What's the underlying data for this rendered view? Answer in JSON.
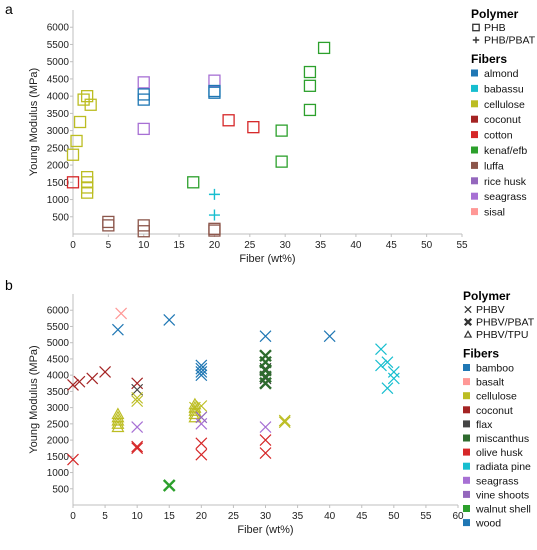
{
  "chart_data": [
    {
      "panel_label": "a",
      "type": "scatter",
      "xlabel": "Fiber (wt%)",
      "ylabel": "Young Modulus (MPa)",
      "xlim": [
        0,
        55
      ],
      "ylim": [
        0,
        6500
      ],
      "x_ticks": [
        0,
        5,
        10,
        15,
        20,
        25,
        30,
        35,
        40,
        45,
        50,
        55
      ],
      "y_ticks": [
        500,
        1000,
        1500,
        2000,
        2500,
        3000,
        3500,
        4000,
        4500,
        5000,
        5500,
        6000
      ],
      "legend_polymer": {
        "title": "Polymer",
        "items": [
          {
            "label": "PHB",
            "marker": "square"
          },
          {
            "label": "PHB/PBAT",
            "marker": "plus"
          }
        ]
      },
      "legend_fibers": {
        "title": "Fibers",
        "items": [
          {
            "label": "almond",
            "color": "#1f77b4"
          },
          {
            "label": "babassu",
            "color": "#17becf"
          },
          {
            "label": "cellulose",
            "color": "#bcbd22"
          },
          {
            "label": "coconut",
            "color": "#a42323"
          },
          {
            "label": "cotton",
            "color": "#d62728"
          },
          {
            "label": "kenaf/efb",
            "color": "#2ca02c"
          },
          {
            "label": "luffa",
            "color": "#8c564b"
          },
          {
            "label": "rice husk",
            "color": "#9467bd"
          },
          {
            "label": "seagrass",
            "color": "#a770d4"
          },
          {
            "label": "sisal",
            "color": "#ff9896"
          }
        ]
      },
      "series": [
        {
          "fiber": "cellulose",
          "marker": "square",
          "points": [
            [
              0,
              2300
            ],
            [
              0.5,
              2700
            ],
            [
              1,
              3250
            ],
            [
              1.5,
              3900
            ],
            [
              2,
              4000
            ],
            [
              2.5,
              3750
            ],
            [
              2,
              1650
            ],
            [
              2,
              1500
            ],
            [
              2,
              1350
            ],
            [
              2,
              1200
            ]
          ]
        },
        {
          "fiber": "cotton",
          "marker": "square",
          "points": [
            [
              0,
              1500
            ],
            [
              22,
              3300
            ],
            [
              25.5,
              3100
            ]
          ]
        },
        {
          "fiber": "luffa",
          "marker": "square",
          "points": [
            [
              5,
              350
            ],
            [
              5,
              250
            ],
            [
              10,
              250
            ],
            [
              10,
              80
            ],
            [
              20,
              150
            ],
            [
              20,
              100
            ]
          ]
        },
        {
          "fiber": "seagrass",
          "marker": "square",
          "points": [
            [
              10,
              4400
            ],
            [
              10,
              3050
            ],
            [
              20,
              4450
            ]
          ]
        },
        {
          "fiber": "almond",
          "marker": "square",
          "points": [
            [
              10,
              4050
            ],
            [
              10,
              3900
            ],
            [
              20,
              4150
            ],
            [
              20,
              4100
            ]
          ]
        },
        {
          "fiber": "kenaf/efb",
          "marker": "square",
          "points": [
            [
              17,
              1500
            ],
            [
              29.5,
              3000
            ],
            [
              29.5,
              2100
            ],
            [
              33.5,
              4700
            ],
            [
              33.5,
              4300
            ],
            [
              33.5,
              3600
            ],
            [
              35.5,
              5400
            ]
          ]
        },
        {
          "fiber": "babassu",
          "marker": "plus",
          "points": [
            [
              20,
              1150
            ],
            [
              20,
              550
            ]
          ]
        }
      ]
    },
    {
      "panel_label": "b",
      "type": "scatter",
      "xlabel": "Fiber (wt%)",
      "ylabel": "Young Modulus (MPa)",
      "xlim": [
        0,
        60
      ],
      "ylim": [
        0,
        6500
      ],
      "x_ticks": [
        0,
        5,
        10,
        15,
        20,
        25,
        30,
        35,
        40,
        45,
        50,
        55,
        60
      ],
      "y_ticks": [
        500,
        1000,
        1500,
        2000,
        2500,
        3000,
        3500,
        4000,
        4500,
        5000,
        5500,
        6000
      ],
      "legend_polymer": {
        "title": "Polymer",
        "items": [
          {
            "label": "PHBV",
            "marker": "x"
          },
          {
            "label": "PHBV/PBAT",
            "marker": "x-filled"
          },
          {
            "label": "PHBV/TPU",
            "marker": "triangle"
          }
        ]
      },
      "legend_fibers": {
        "title": "Fibers",
        "items": [
          {
            "label": "bamboo",
            "color": "#1f77b4"
          },
          {
            "label": "basalt",
            "color": "#ff9896"
          },
          {
            "label": "cellulose",
            "color": "#bcbd22"
          },
          {
            "label": "coconut",
            "color": "#a42323"
          },
          {
            "label": "flax",
            "color": "#444444"
          },
          {
            "label": "miscanthus",
            "color": "#2e6b2e"
          },
          {
            "label": "olive husk",
            "color": "#d62728"
          },
          {
            "label": "radiata pine",
            "color": "#17becf"
          },
          {
            "label": "seagrass",
            "color": "#a770d4"
          },
          {
            "label": "vine shoots",
            "color": "#9467bd"
          },
          {
            "label": "walnut shell",
            "color": "#2ca02c"
          },
          {
            "label": "wood",
            "color": "#1f77b4"
          }
        ]
      },
      "series": [
        {
          "fiber": "coconut",
          "marker": "x",
          "points": [
            [
              0,
              3700
            ],
            [
              1,
              3800
            ],
            [
              3,
              3900
            ],
            [
              5,
              4100
            ],
            [
              10,
              3750
            ]
          ]
        },
        {
          "fiber": "olive husk",
          "marker": "x",
          "points": [
            [
              0,
              1400
            ],
            [
              10,
              1800
            ],
            [
              10,
              1750
            ],
            [
              20,
              1900
            ],
            [
              20,
              1550
            ],
            [
              30,
              2000
            ],
            [
              30,
              1600
            ]
          ]
        },
        {
          "fiber": "basalt",
          "marker": "x",
          "points": [
            [
              7.5,
              5900
            ]
          ]
        },
        {
          "fiber": "bamboo",
          "marker": "x",
          "points": [
            [
              7,
              5400
            ],
            [
              15,
              5700
            ],
            [
              20,
              4300
            ],
            [
              20,
              4200
            ],
            [
              20,
              4100
            ],
            [
              20,
              4000
            ],
            [
              30,
              5200
            ],
            [
              40,
              5200
            ]
          ]
        },
        {
          "fiber": "flax",
          "marker": "x",
          "points": [
            [
              10,
              3550
            ],
            [
              30,
              4200
            ],
            [
              30,
              3900
            ]
          ]
        },
        {
          "fiber": "miscanthus",
          "marker": "x-filled",
          "points": [
            [
              30,
              4600
            ],
            [
              30,
              4400
            ],
            [
              30,
              4150
            ],
            [
              30,
              3950
            ],
            [
              30,
              3750
            ]
          ]
        },
        {
          "fiber": "cellulose",
          "marker": "x",
          "points": [
            [
              10,
              3300
            ],
            [
              10,
              3200
            ],
            [
              19,
              3000
            ],
            [
              20,
              3050
            ],
            [
              33,
              2600
            ],
            [
              33,
              2550
            ]
          ]
        },
        {
          "fiber": "cellulose",
          "marker": "triangle",
          "points": [
            [
              7,
              2800
            ],
            [
              7,
              2700
            ],
            [
              7,
              2600
            ],
            [
              7,
              2500
            ],
            [
              7,
              2400
            ],
            [
              19,
              3100
            ],
            [
              19,
              3000
            ],
            [
              19,
              2900
            ],
            [
              19,
              2800
            ],
            [
              19,
              2700
            ]
          ]
        },
        {
          "fiber": "seagrass",
          "marker": "x",
          "points": [
            [
              10,
              2400
            ],
            [
              20,
              2500
            ],
            [
              30,
              2400
            ]
          ]
        },
        {
          "fiber": "vine shoots",
          "marker": "x",
          "points": [
            [
              20,
              2700
            ]
          ]
        },
        {
          "fiber": "walnut shell",
          "marker": "x-filled",
          "points": [
            [
              15,
              600
            ]
          ]
        },
        {
          "fiber": "radiata pine",
          "marker": "x",
          "points": [
            [
              48,
              4800
            ],
            [
              49,
              4400
            ],
            [
              48,
              4300
            ],
            [
              50,
              4100
            ],
            [
              50,
              3900
            ],
            [
              49,
              3600
            ]
          ]
        }
      ]
    }
  ]
}
